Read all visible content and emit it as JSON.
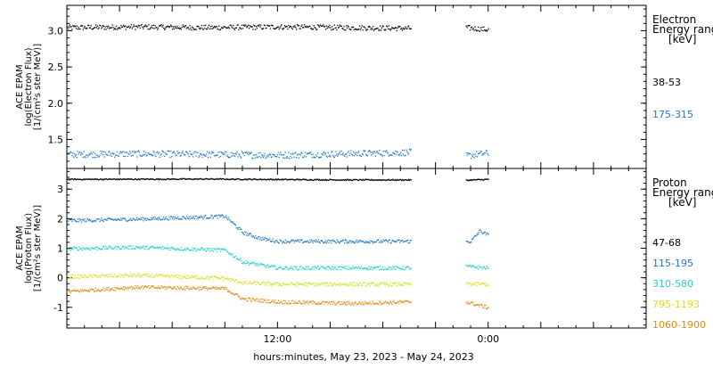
{
  "chart_data": [
    {
      "type": "scatter",
      "panel": "electron",
      "ylabel_lines": [
        "ACE EPAM",
        "log(Electron Flux)",
        "[1/(cm²s ster MeV)]"
      ],
      "legend_header_lines": [
        "Electron",
        "Energy ranges",
        "[keV]"
      ],
      "ylim": [
        1.1,
        3.35
      ],
      "yticks": [
        "1.5",
        "2.0",
        "2.5",
        "3.0"
      ],
      "ytick_values": [
        1.5,
        2.0,
        2.5,
        3.0
      ],
      "x_hours_range": [
        -24,
        9
      ],
      "data_gap_hours": [
        -4.4,
        -1.3
      ],
      "series": [
        {
          "name": "38-53",
          "color": "#000000",
          "x_hours": [
            -24,
            -20,
            -16,
            -12,
            -8,
            -4.4,
            -1.3,
            0
          ],
          "y": [
            3.05,
            3.06,
            3.05,
            3.06,
            3.05,
            3.04,
            3.05,
            3.02
          ]
        },
        {
          "name": "175-315",
          "color": "#1f78c8",
          "x_hours": [
            -24,
            -20,
            -16,
            -12,
            -8,
            -4.4,
            -1.3,
            0
          ],
          "y": [
            1.3,
            1.31,
            1.3,
            1.29,
            1.31,
            1.33,
            1.28,
            1.32
          ]
        }
      ]
    },
    {
      "type": "scatter",
      "panel": "proton",
      "ylabel_lines": [
        "ACE EPAM",
        "log(Proton Flux)",
        "[1/(cm²s ster MeV)]"
      ],
      "legend_header_lines": [
        "Proton",
        "Energy ranges",
        "[keV]"
      ],
      "ylim": [
        -1.7,
        3.7
      ],
      "yticks": [
        "-1",
        "0",
        "1",
        "2",
        "3"
      ],
      "ytick_values": [
        -1,
        0,
        1,
        2,
        3
      ],
      "x_hours_range": [
        -24,
        9
      ],
      "data_gap_hours": [
        -4.4,
        -1.3
      ],
      "series": [
        {
          "name": "47-68",
          "color": "#000000",
          "x_hours": [
            -24,
            -16,
            -8,
            -4.4,
            -1.3,
            0
          ],
          "y": [
            3.35,
            3.36,
            3.33,
            3.33,
            3.32,
            3.35
          ]
        },
        {
          "name": "115-195",
          "color": "#1f78c8",
          "x_hours": [
            -24,
            -20,
            -15,
            -14,
            -13,
            -12,
            -8,
            -4.4,
            -1.3,
            -1,
            -0.5,
            0
          ],
          "y": [
            1.95,
            2.0,
            2.1,
            1.55,
            1.35,
            1.25,
            1.25,
            1.25,
            1.25,
            1.25,
            1.6,
            1.45
          ]
        },
        {
          "name": "310-580",
          "color": "#22d0d0",
          "x_hours": [
            -24,
            -20,
            -15,
            -14,
            -13,
            -12,
            -8,
            -4.4,
            -1.3,
            0
          ],
          "y": [
            1.0,
            1.05,
            0.95,
            0.55,
            0.45,
            0.35,
            0.35,
            0.35,
            0.4,
            0.35
          ]
        },
        {
          "name": "795-1193",
          "color": "#d8e020",
          "x_hours": [
            -24,
            -20,
            -15,
            -14,
            -12,
            -8,
            -4.4,
            -1.3,
            0
          ],
          "y": [
            0.05,
            0.1,
            0.0,
            -0.15,
            -0.2,
            -0.2,
            -0.2,
            -0.2,
            -0.2
          ]
        },
        {
          "name": "1060-1900",
          "color": "#e08a10",
          "x_hours": [
            -24,
            -20,
            -15,
            -14,
            -12,
            -8,
            -4.4,
            -1.3,
            0
          ],
          "y": [
            -0.45,
            -0.3,
            -0.35,
            -0.7,
            -0.8,
            -0.85,
            -0.8,
            -0.8,
            -1.0
          ]
        }
      ]
    }
  ],
  "x_axis": {
    "tick_labels": [
      {
        "label": "12:00",
        "hours": -12
      },
      {
        "label": "0:00",
        "hours": 0
      }
    ],
    "xlabel": "hours:minutes, May 23, 2023 - May 24, 2023"
  }
}
